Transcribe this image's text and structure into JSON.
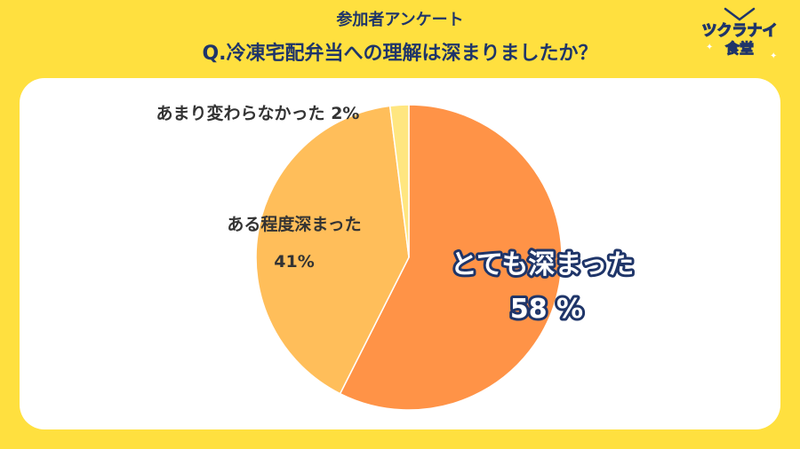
{
  "header": {
    "subtitle": "参加者アンケート",
    "title": "Q.冷凍宅配弁当への理解は深まりましたか？"
  },
  "logo": {
    "line1": "ツクラナイ",
    "line2": "食堂",
    "icon": "fork-knife-icon"
  },
  "colors": {
    "background": "#FFE03F",
    "slice_very": "#FF9347",
    "slice_some": "#FFBE5A",
    "slice_not": "#FFE680",
    "title_text": "#1F3569"
  },
  "chart_data": {
    "type": "pie",
    "title": "Q.冷凍宅配弁当への理解は深まりましたか？",
    "slices": [
      {
        "label": "とても深まった",
        "value": 58,
        "value_label": "58 %",
        "color": "#FF9347"
      },
      {
        "label": "ある程度深まった",
        "value": 41,
        "value_label": "41%",
        "color": "#FFBE5A"
      },
      {
        "label": "あまり変わらなかった",
        "value": 2,
        "value_label": "2%",
        "color": "#FFE680"
      }
    ]
  }
}
